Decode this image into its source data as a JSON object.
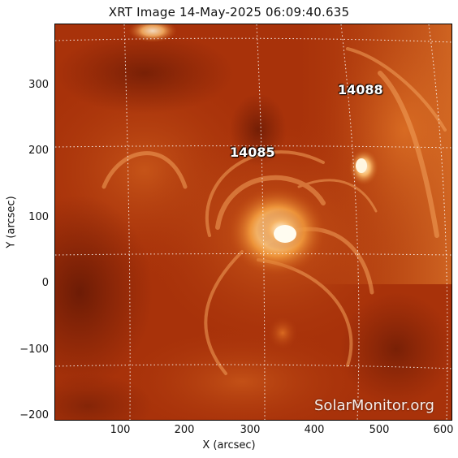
{
  "title": "XRT Image 14-May-2025 06:09:40.635",
  "xlabel": "X (arcsec)",
  "ylabel": "Y (arcsec)",
  "x_ticks": [
    "100",
    "200",
    "300",
    "400",
    "500",
    "600"
  ],
  "y_ticks": [
    "300",
    "200",
    "100",
    "0",
    "−100",
    "−200"
  ],
  "active_regions": [
    {
      "label": "14088"
    },
    {
      "label": "14085"
    }
  ],
  "watermark": "SolarMonitor.org",
  "colors": {
    "background": "#a8320a",
    "bright_core": "#fff8e6",
    "grid": "#ffffff"
  }
}
